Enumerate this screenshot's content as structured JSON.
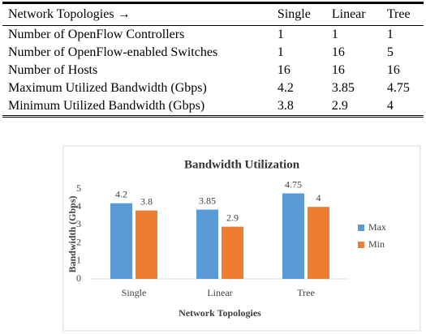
{
  "table": {
    "header": [
      "Network Topologies →",
      "Single",
      "Linear",
      "Tree"
    ],
    "rows": [
      [
        "Number of OpenFlow Controllers",
        1,
        1,
        1
      ],
      [
        "Number of OpenFlow-enabled Switches",
        1,
        16,
        5
      ],
      [
        "Number of Hosts",
        16,
        16,
        16
      ],
      [
        "Maximum Utilized Bandwidth (Gbps)",
        4.2,
        3.85,
        4.75
      ],
      [
        "Minimum Utilized Bandwidth (Gbps)",
        3.8,
        2.9,
        4
      ]
    ]
  },
  "chart_data": {
    "type": "bar",
    "title": "Bandwidth Utilization",
    "x_label": "Network Topologies",
    "y_label": "Bandwidth (Gbps)",
    "categories": [
      "Single",
      "Linear",
      "Tree"
    ],
    "series": [
      {
        "name": "Max",
        "color": "#5b9bd5",
        "values": [
          4.2,
          3.85,
          4.75
        ]
      },
      {
        "name": "Min",
        "color": "#ed7d31",
        "values": [
          3.8,
          2.9,
          4
        ]
      }
    ],
    "ylim": [
      0,
      5
    ],
    "yticks": [
      0,
      1,
      2,
      3,
      4,
      5
    ],
    "grid": false,
    "legend": "right"
  }
}
